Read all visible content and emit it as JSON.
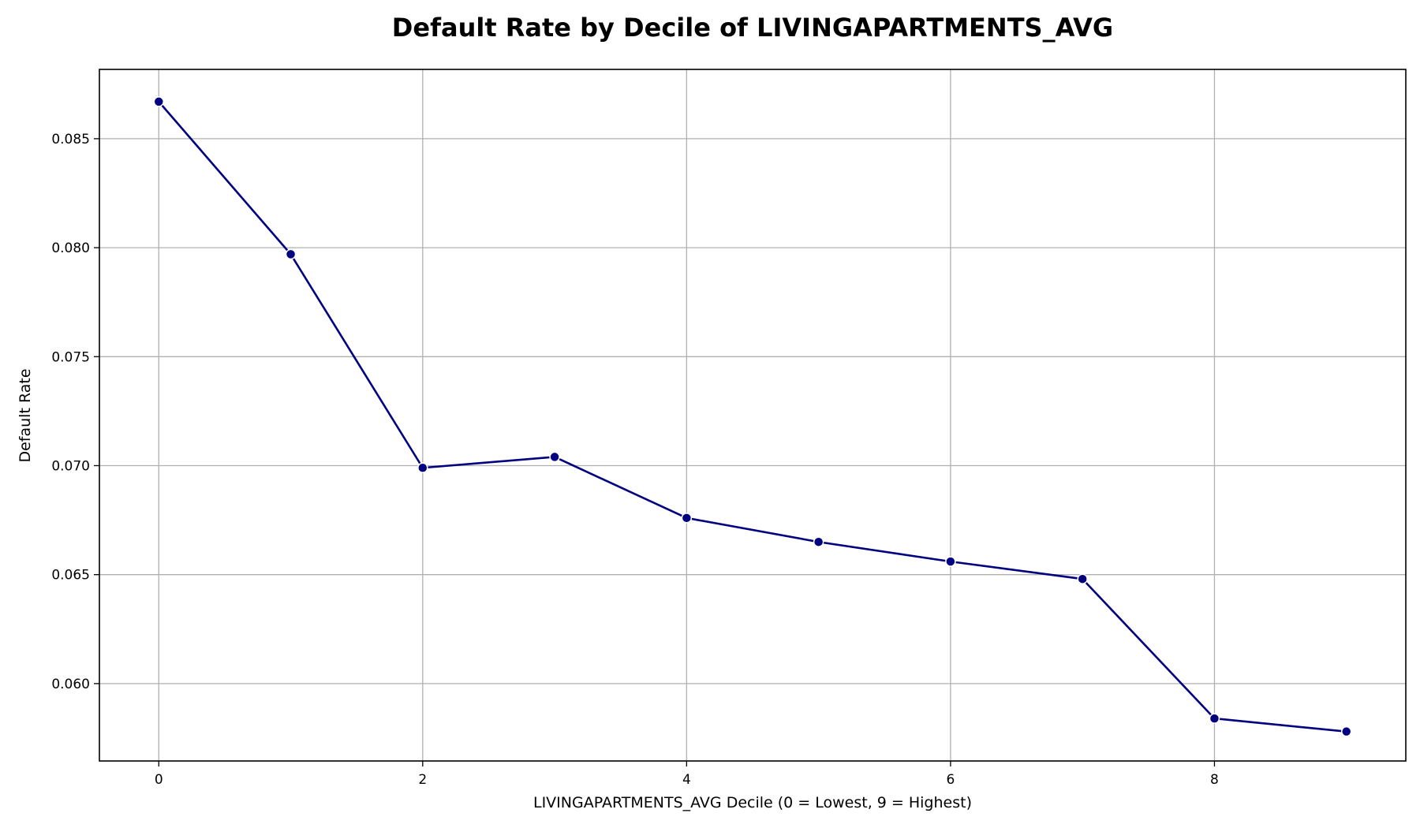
{
  "chart_data": {
    "type": "line",
    "title": "Default Rate by Decile of LIVINGAPARTMENTS_AVG",
    "xlabel": "LIVINGAPARTMENTS_AVG Decile (0 = Lowest, 9 = Highest)",
    "ylabel": "Default Rate",
    "x": [
      0,
      1,
      2,
      3,
      4,
      5,
      6,
      7,
      8,
      9
    ],
    "series": [
      {
        "values": [
          0.0867,
          0.0797,
          0.0699,
          0.0704,
          0.0676,
          0.0665,
          0.0656,
          0.0648,
          0.0584,
          0.0578
        ],
        "color": "#000080",
        "marker": "circle"
      }
    ],
    "xticks": [
      0,
      2,
      4,
      6,
      8
    ],
    "xtick_labels": [
      "0",
      "2",
      "4",
      "6",
      "8"
    ],
    "yticks": [
      0.06,
      0.065,
      0.07,
      0.075,
      0.08,
      0.085
    ],
    "ytick_labels": [
      "0.060",
      "0.065",
      "0.070",
      "0.075",
      "0.080",
      "0.085"
    ],
    "xlim": [
      -0.45,
      9.45
    ],
    "ylim": [
      0.05645,
      0.08818
    ],
    "grid": true,
    "legend": "none"
  }
}
